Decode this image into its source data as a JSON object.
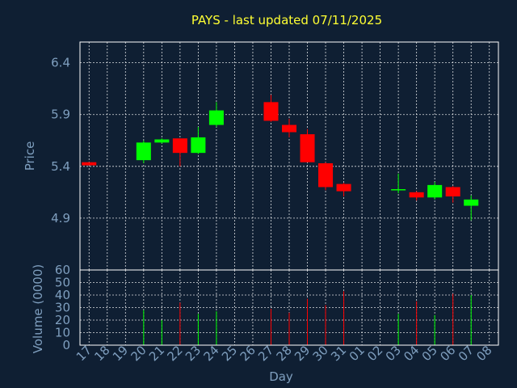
{
  "chart_data": {
    "type": "candlestick",
    "title": "PAYS - last updated 07/11/2025",
    "xlabel": "Day",
    "price_panel": {
      "ylabel": "Price",
      "ylim": [
        4.4,
        6.6
      ],
      "yticks": [
        4.9,
        5.4,
        5.9,
        6.4
      ],
      "ytick_labels": [
        "4.9",
        "5.4",
        "5.9",
        "6.4"
      ],
      "grid": true
    },
    "volume_panel": {
      "ylabel": "Volume (0000)",
      "ylim": [
        0,
        60
      ],
      "yticks": [
        0,
        10,
        20,
        30,
        40,
        50,
        60
      ],
      "ytick_labels": [
        "0",
        "10",
        "20",
        "30",
        "40",
        "50",
        "60"
      ],
      "grid": true
    },
    "x_ticks": [
      "17",
      "18",
      "19",
      "20",
      "21",
      "22",
      "23",
      "24",
      "25",
      "26",
      "27",
      "28",
      "29",
      "30",
      "31",
      "01",
      "02",
      "03",
      "04",
      "05",
      "06",
      "07",
      "08"
    ],
    "colors": {
      "up": "#00ff00",
      "down": "#ff0000",
      "background": "#0f1f33",
      "text": "#7f9fbf",
      "title": "#ffff33"
    },
    "candles": [
      {
        "day": "17",
        "open": 5.44,
        "high": 5.44,
        "low": 5.41,
        "close": 5.41,
        "volume": 0
      },
      {
        "day": "20",
        "open": 5.46,
        "high": 5.65,
        "low": 5.43,
        "close": 5.63,
        "volume": 28
      },
      {
        "day": "21",
        "open": 5.63,
        "high": 5.67,
        "low": 5.62,
        "close": 5.66,
        "volume": 20
      },
      {
        "day": "22",
        "open": 5.67,
        "high": 5.67,
        "low": 5.4,
        "close": 5.53,
        "volume": 34
      },
      {
        "day": "23",
        "open": 5.53,
        "high": 5.78,
        "low": 5.52,
        "close": 5.68,
        "volume": 25
      },
      {
        "day": "24",
        "open": 5.8,
        "high": 6.02,
        "low": 5.78,
        "close": 5.94,
        "volume": 27
      },
      {
        "day": "27",
        "open": 6.02,
        "high": 6.09,
        "low": 5.83,
        "close": 5.84,
        "volume": 29
      },
      {
        "day": "28",
        "open": 5.8,
        "high": 5.86,
        "low": 5.68,
        "close": 5.73,
        "volume": 26
      },
      {
        "day": "29",
        "open": 5.71,
        "high": 5.76,
        "low": 5.44,
        "close": 5.44,
        "volume": 37
      },
      {
        "day": "30",
        "open": 5.43,
        "high": 5.44,
        "low": 5.17,
        "close": 5.2,
        "volume": 32
      },
      {
        "day": "31",
        "open": 5.23,
        "high": 5.24,
        "low": 5.11,
        "close": 5.16,
        "volume": 43
      },
      {
        "day": "03",
        "open": 5.17,
        "high": 5.33,
        "low": 5.14,
        "close": 5.18,
        "volume": 25
      },
      {
        "day": "04",
        "open": 5.15,
        "high": 5.16,
        "low": 5.07,
        "close": 5.1,
        "volume": 35
      },
      {
        "day": "05",
        "open": 5.1,
        "high": 5.25,
        "low": 5.08,
        "close": 5.22,
        "volume": 24
      },
      {
        "day": "06",
        "open": 5.2,
        "high": 5.21,
        "low": 5.05,
        "close": 5.11,
        "volume": 41
      },
      {
        "day": "07",
        "open": 5.02,
        "high": 5.12,
        "low": 4.88,
        "close": 5.08,
        "volume": 40
      }
    ]
  }
}
